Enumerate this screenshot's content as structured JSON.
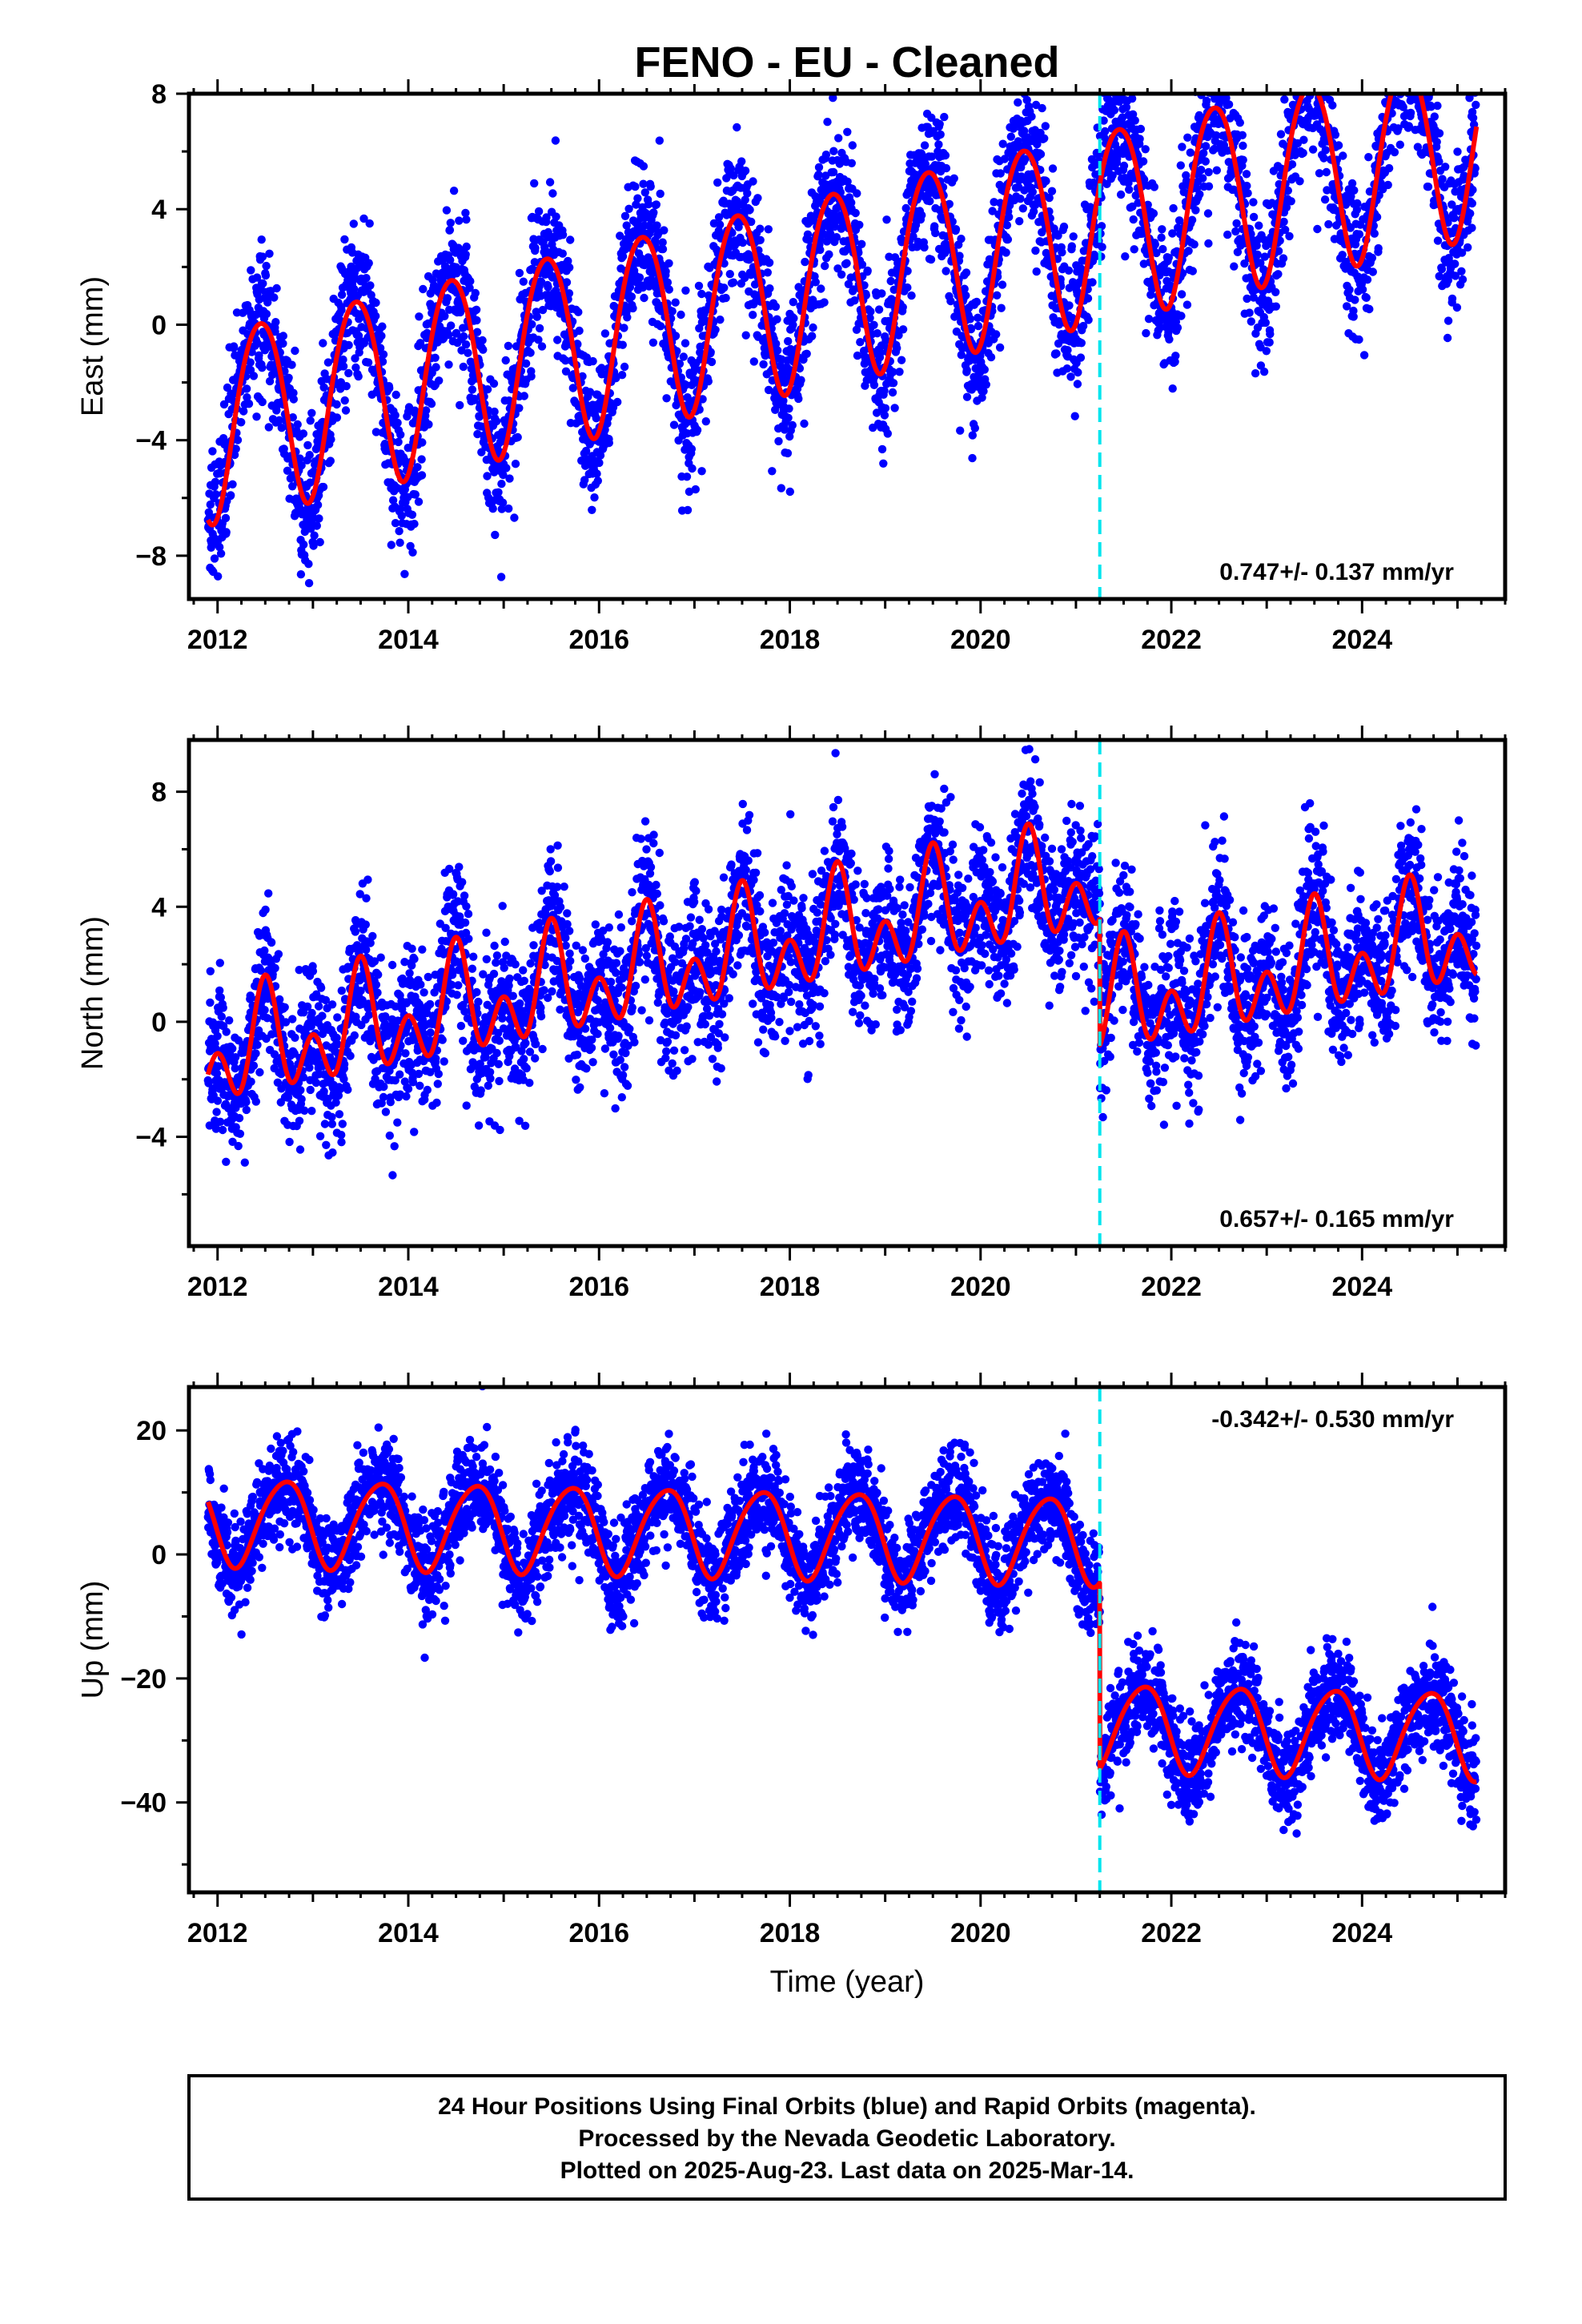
{
  "chart_data": [
    {
      "type": "scatter",
      "title": "FENO  - EU - Cleaned",
      "ylabel": "East (mm)",
      "xlabel": "",
      "xlim": [
        2011.7,
        2025.5
      ],
      "ylim": [
        -9.5,
        8
      ],
      "xticks": [
        2012,
        2014,
        2016,
        2018,
        2020,
        2022,
        2024
      ],
      "yticks": [
        -8,
        -4,
        0,
        4,
        8
      ],
      "rate_label": "0.747+/- 0.137 mm/yr",
      "rate_position": "bottom-right",
      "step_epoch": 2021.25,
      "model": {
        "intercept_2012": -3.3,
        "rate": 0.747,
        "offset_at_step": 0,
        "annual_amplitude": 3.3,
        "annual_peak": 2012.45,
        "semiannual_amplitude": 0.3,
        "semiannual_peak": 2012.2,
        "scatter": 1.3
      },
      "series": [
        {
          "name": "Final Orbits",
          "color": "#0000ff",
          "style": "dots",
          "x_range": [
            2011.9,
            2025.2
          ]
        },
        {
          "name": "Model",
          "color": "#ff0000",
          "style": "line",
          "x_range": [
            2011.9,
            2025.2
          ]
        }
      ],
      "grid": false
    },
    {
      "type": "scatter",
      "title": "",
      "ylabel": "North (mm)",
      "xlabel": "",
      "xlim": [
        2011.7,
        2025.5
      ],
      "ylim": [
        -7.8,
        9.8
      ],
      "xticks": [
        2012,
        2014,
        2016,
        2018,
        2020,
        2022,
        2024
      ],
      "yticks": [
        -4,
        0,
        4,
        8
      ],
      "rate_label": "0.657+/- 0.165 mm/yr",
      "rate_position": "bottom-right",
      "step_epoch": 2021.25,
      "model": {
        "intercept_2012": -1.2,
        "rate": 0.657,
        "offset_at_step": -4.4,
        "annual_amplitude": 1.2,
        "annual_peak": 2012.5,
        "semiannual_amplitude": 1.3,
        "semiannual_peak": 2012.0,
        "scatter": 1.3
      },
      "series": [
        {
          "name": "Final Orbits",
          "color": "#0000ff",
          "style": "dots",
          "x_range": [
            2011.9,
            2025.2
          ]
        },
        {
          "name": "Model",
          "color": "#ff0000",
          "style": "line",
          "x_range": [
            2011.9,
            2025.2
          ]
        }
      ],
      "grid": false
    },
    {
      "type": "scatter",
      "title": "",
      "ylabel": "Up (mm)",
      "xlabel": "Time (year)",
      "xlim": [
        2011.7,
        2025.5
      ],
      "ylim": [
        -54.5,
        27
      ],
      "xticks": [
        2012,
        2014,
        2016,
        2018,
        2020,
        2022,
        2024
      ],
      "yticks": [
        -40,
        -20,
        0,
        20
      ],
      "rate_label": "-0.342+/- 0.530 mm/yr",
      "rate_position": "top-right",
      "step_epoch": 2021.25,
      "model": {
        "intercept_2012": 5.5,
        "rate": -0.342,
        "offset_at_step": -30,
        "annual_amplitude": 7,
        "annual_peak": 2012.7,
        "semiannual_amplitude": 0.8,
        "semiannual_peak": 2012.4,
        "scatter": 4
      },
      "series": [
        {
          "name": "Final Orbits",
          "color": "#0000ff",
          "style": "dots",
          "x_range": [
            2011.9,
            2025.2
          ]
        },
        {
          "name": "Model",
          "color": "#ff0000",
          "style": "line",
          "x_range": [
            2011.9,
            2025.2
          ]
        }
      ],
      "grid": false
    }
  ],
  "footer": {
    "line1": "24 Hour Positions Using Final Orbits (blue) and Rapid Orbits (magenta).",
    "line2": "Processed by the Nevada Geodetic Laboratory.",
    "line3": "Plotted on 2025-Aug-23. Last data on 2025-Mar-14."
  },
  "colors": {
    "final_orbits": "#0000ff",
    "model": "#ff0000",
    "step_marker": "#00e5ee",
    "frame": "#000000"
  }
}
